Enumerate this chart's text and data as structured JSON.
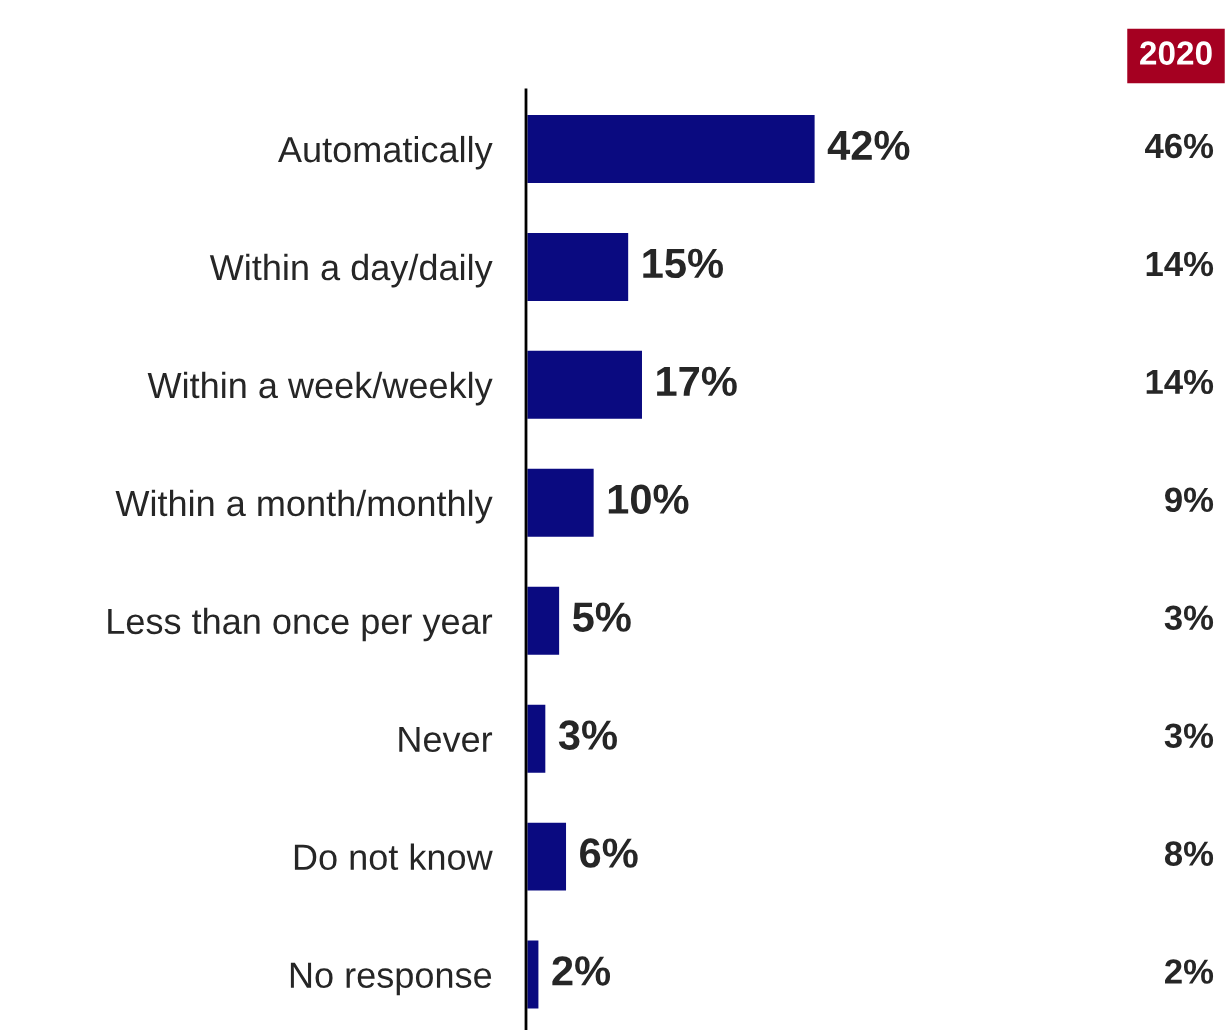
{
  "chart_data": {
    "type": "bar",
    "orientation": "horizontal",
    "categories": [
      "Automatically",
      "Within a day/daily",
      "Within a week/weekly",
      "Within a month/monthly",
      "Less than once per year",
      "Never",
      "Do not know",
      "No response"
    ],
    "values": [
      42,
      15,
      17,
      10,
      5,
      3,
      6,
      2
    ],
    "value_labels": [
      "42%",
      "15%",
      "17%",
      "10%",
      "5%",
      "3%",
      "6%",
      "2%"
    ],
    "color": "#0a0a80",
    "annotations": [
      "2020",
      "46%",
      "14%",
      "14%",
      "9%",
      "3%",
      "3%",
      "8%",
      "2%"
    ]
  }
}
